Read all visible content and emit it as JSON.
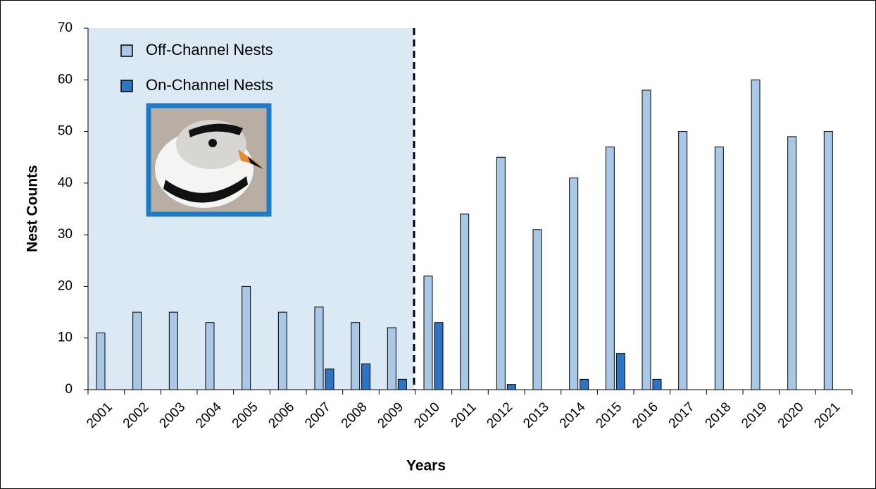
{
  "chart_data": {
    "type": "bar",
    "x_label": "Years",
    "y_label": "Nest Counts",
    "categories": [
      "2001",
      "2002",
      "2003",
      "2004",
      "2005",
      "2006",
      "2007",
      "2008",
      "2009",
      "2010",
      "2011",
      "2012",
      "2013",
      "2014",
      "2015",
      "2016",
      "2017",
      "2018",
      "2019",
      "2020",
      "2021"
    ],
    "series": [
      {
        "name": "Off-Channel Nests",
        "color": "#a8c8e6",
        "values": [
          11,
          15,
          15,
          13,
          20,
          15,
          16,
          13,
          12,
          22,
          34,
          45,
          31,
          41,
          47,
          58,
          50,
          47,
          60,
          49,
          50
        ]
      },
      {
        "name": "On-Channel Nests",
        "color": "#2f73c4",
        "values": [
          0,
          0,
          0,
          0,
          0,
          0,
          4,
          5,
          2,
          13,
          0,
          1,
          0,
          2,
          7,
          2,
          0,
          0,
          0,
          0,
          0
        ]
      }
    ],
    "ylim": [
      0,
      70
    ],
    "yticks": [
      0,
      10,
      20,
      30,
      40,
      50,
      60,
      70
    ]
  }
}
